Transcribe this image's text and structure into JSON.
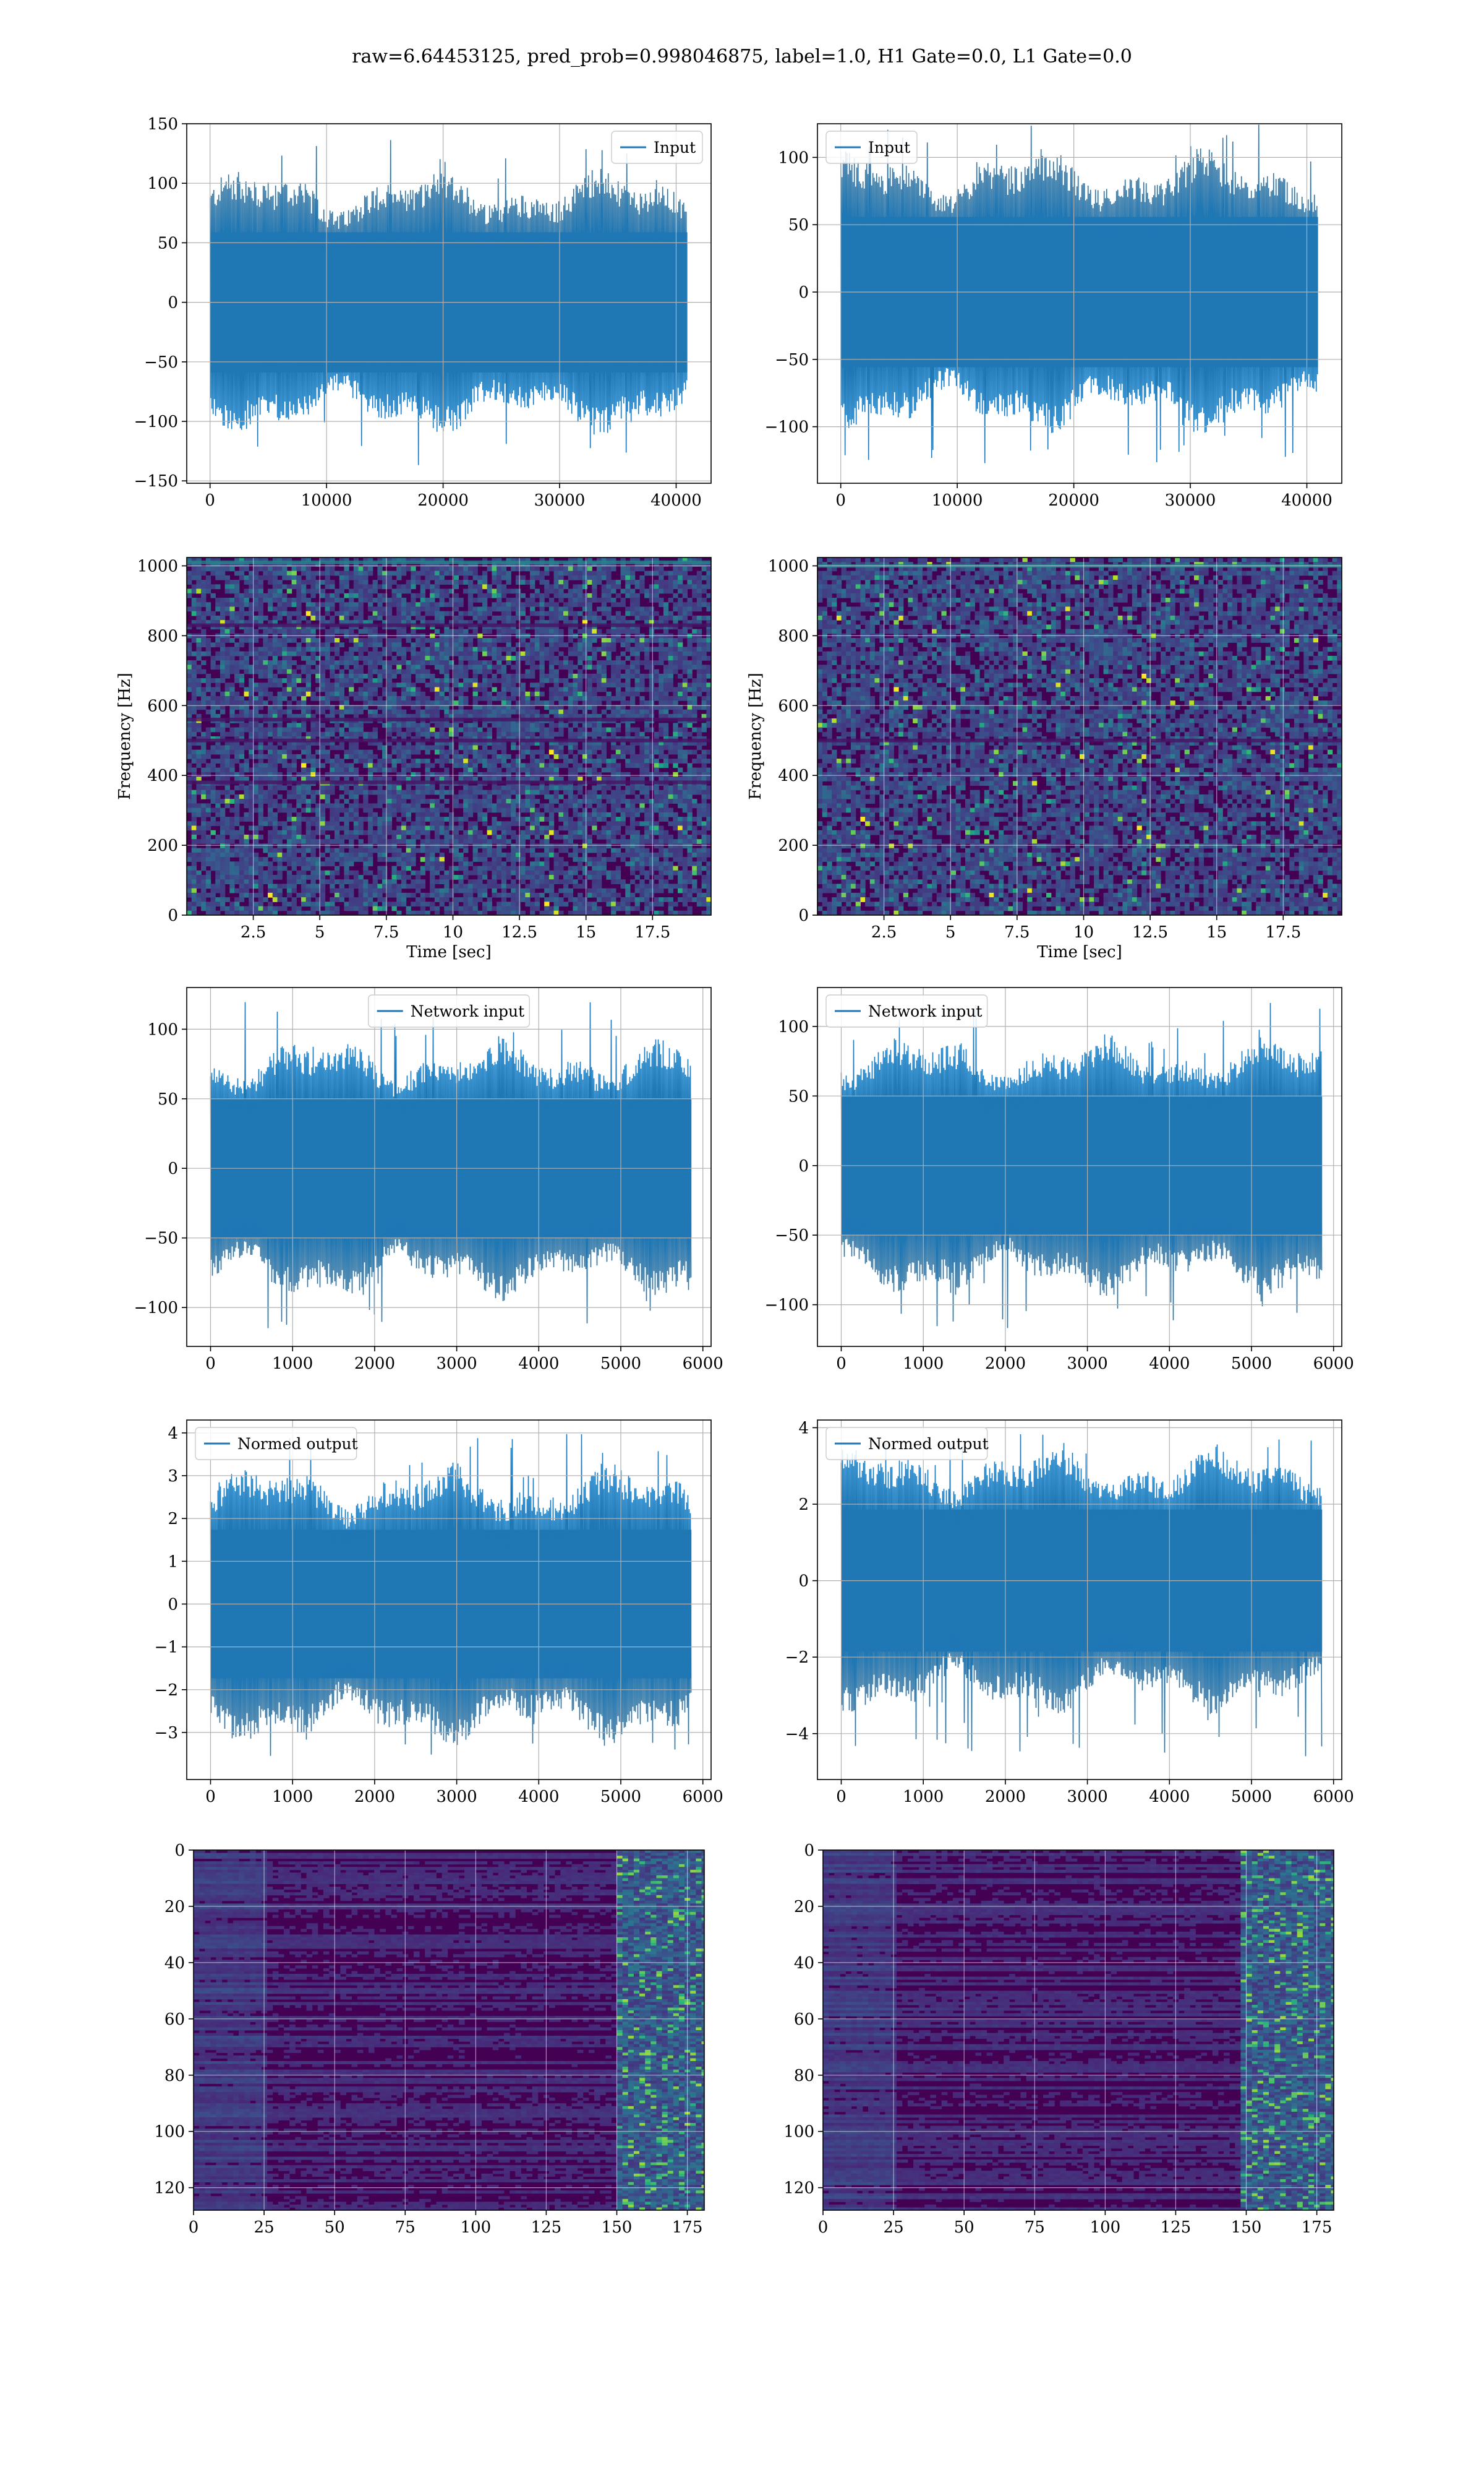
{
  "title": "raw=6.64453125, pred_prob=0.998046875, label=1.0, H1 Gate=0.0, L1 Gate=0.0",
  "colors": {
    "line": "#1f77b4",
    "grid": "#b0b0b0",
    "viridis_low": "#440154",
    "viridis_high": "#fde725"
  },
  "chart_data": [
    {
      "id": "input-h1",
      "type": "line",
      "legend": "Input",
      "legend_loc": "upper right",
      "xlim": [
        -2000,
        43000
      ],
      "ylim": [
        -152,
        150
      ],
      "xticks": [
        0,
        10000,
        20000,
        30000,
        40000
      ],
      "yticks": [
        -150,
        -100,
        -50,
        0,
        50,
        100,
        150
      ],
      "signal": {
        "n_samples": 40960,
        "noise_sigma": 28,
        "typical_peak": 95,
        "max": 138,
        "min": -138
      },
      "grid": true,
      "xlabel": "",
      "ylabel": ""
    },
    {
      "id": "input-l1",
      "type": "line",
      "legend": "Input",
      "legend_loc": "upper left",
      "xlim": [
        -2000,
        43000
      ],
      "ylim": [
        -142,
        125
      ],
      "xticks": [
        0,
        10000,
        20000,
        30000,
        40000
      ],
      "yticks": [
        -100,
        -50,
        0,
        50,
        100
      ],
      "signal": {
        "n_samples": 40960,
        "noise_sigma": 27,
        "typical_peak": 90,
        "max": 132,
        "min": -128
      },
      "grid": true,
      "xlabel": "",
      "ylabel": ""
    },
    {
      "id": "spec-h1",
      "type": "heatmap",
      "colormap": "viridis",
      "xlim": [
        0,
        19.7
      ],
      "ylim": [
        0,
        1024
      ],
      "xticks": [
        2.5,
        5.0,
        7.5,
        10.0,
        12.5,
        15.0,
        17.5
      ],
      "yticks": [
        0,
        200,
        400,
        600,
        800,
        1000
      ],
      "xlabel": "Time [sec]",
      "ylabel": "Frequency [Hz]",
      "grid": true,
      "lines_hz": [
        1010,
        830,
        560,
        500,
        380
      ]
    },
    {
      "id": "spec-l1",
      "type": "heatmap",
      "colormap": "viridis",
      "xlim": [
        0,
        19.7
      ],
      "ylim": [
        0,
        1024
      ],
      "xticks": [
        2.5,
        5.0,
        7.5,
        10.0,
        12.5,
        15.0,
        17.5
      ],
      "yticks": [
        0,
        200,
        400,
        600,
        800,
        1000
      ],
      "xlabel": "Time [sec]",
      "ylabel": "Frequency [Hz]",
      "grid": true,
      "lines_hz": [
        1000,
        500
      ]
    },
    {
      "id": "netin-h1",
      "type": "line",
      "legend": "Network input",
      "legend_loc": "upper center",
      "xlim": [
        -290,
        6100
      ],
      "ylim": [
        -128,
        130
      ],
      "xticks": [
        0,
        1000,
        2000,
        3000,
        4000,
        5000,
        6000
      ],
      "yticks": [
        -100,
        -50,
        0,
        50,
        100
      ],
      "signal": {
        "n_samples": 5860,
        "noise_sigma": 26,
        "typical_peak": 80,
        "max": 120,
        "min": -117
      },
      "grid": true,
      "xlabel": "",
      "ylabel": ""
    },
    {
      "id": "netin-l1",
      "type": "line",
      "legend": "Network input",
      "legend_loc": "upper left",
      "xlim": [
        -290,
        6100
      ],
      "ylim": [
        -130,
        128
      ],
      "xticks": [
        0,
        1000,
        2000,
        3000,
        4000,
        5000,
        6000
      ],
      "yticks": [
        -100,
        -50,
        0,
        50,
        100
      ],
      "signal": {
        "n_samples": 5860,
        "noise_sigma": 26,
        "typical_peak": 80,
        "max": 118,
        "min": -118
      },
      "grid": true,
      "xlabel": "",
      "ylabel": ""
    },
    {
      "id": "normed-h1",
      "type": "line",
      "legend": "Normed output",
      "legend_loc": "upper left",
      "xlim": [
        -290,
        6100
      ],
      "ylim": [
        -4.1,
        4.3
      ],
      "xticks": [
        0,
        1000,
        2000,
        3000,
        4000,
        5000,
        6000
      ],
      "yticks": [
        -3,
        -2,
        -1,
        0,
        1,
        2,
        3,
        4
      ],
      "signal": {
        "n_samples": 5860,
        "noise_sigma": 0.9,
        "typical_peak": 2.8,
        "max": 4.0,
        "min": -3.6
      },
      "grid": true,
      "xlabel": "",
      "ylabel": ""
    },
    {
      "id": "normed-l1",
      "type": "line",
      "legend": "Normed output",
      "legend_loc": "upper left",
      "xlim": [
        -290,
        6100
      ],
      "ylim": [
        -5.2,
        4.2
      ],
      "xticks": [
        0,
        1000,
        2000,
        3000,
        4000,
        5000,
        6000
      ],
      "yticks": [
        -4,
        -2,
        0,
        2,
        4
      ],
      "signal": {
        "n_samples": 5860,
        "noise_sigma": 0.95,
        "typical_peak": 3.0,
        "max": 3.9,
        "min": -4.6
      },
      "grid": true,
      "xlabel": "",
      "ylabel": ""
    },
    {
      "id": "qt-h1",
      "type": "heatmap",
      "colormap": "viridis",
      "xlim": [
        0,
        181
      ],
      "ylim": [
        128,
        0
      ],
      "xticks": [
        0,
        25,
        50,
        75,
        100,
        125,
        150,
        175
      ],
      "yticks": [
        0,
        20,
        40,
        60,
        80,
        100,
        120
      ],
      "grid": true,
      "xlabel": "",
      "ylabel": "",
      "bright_column_range": [
        150,
        181
      ]
    },
    {
      "id": "qt-l1",
      "type": "heatmap",
      "colormap": "viridis",
      "xlim": [
        0,
        181
      ],
      "ylim": [
        128,
        0
      ],
      "xticks": [
        0,
        25,
        50,
        75,
        100,
        125,
        150,
        175
      ],
      "yticks": [
        0,
        20,
        40,
        60,
        80,
        100,
        120
      ],
      "grid": true,
      "xlabel": "",
      "ylabel": "",
      "bright_column_range": [
        148,
        181
      ]
    }
  ]
}
